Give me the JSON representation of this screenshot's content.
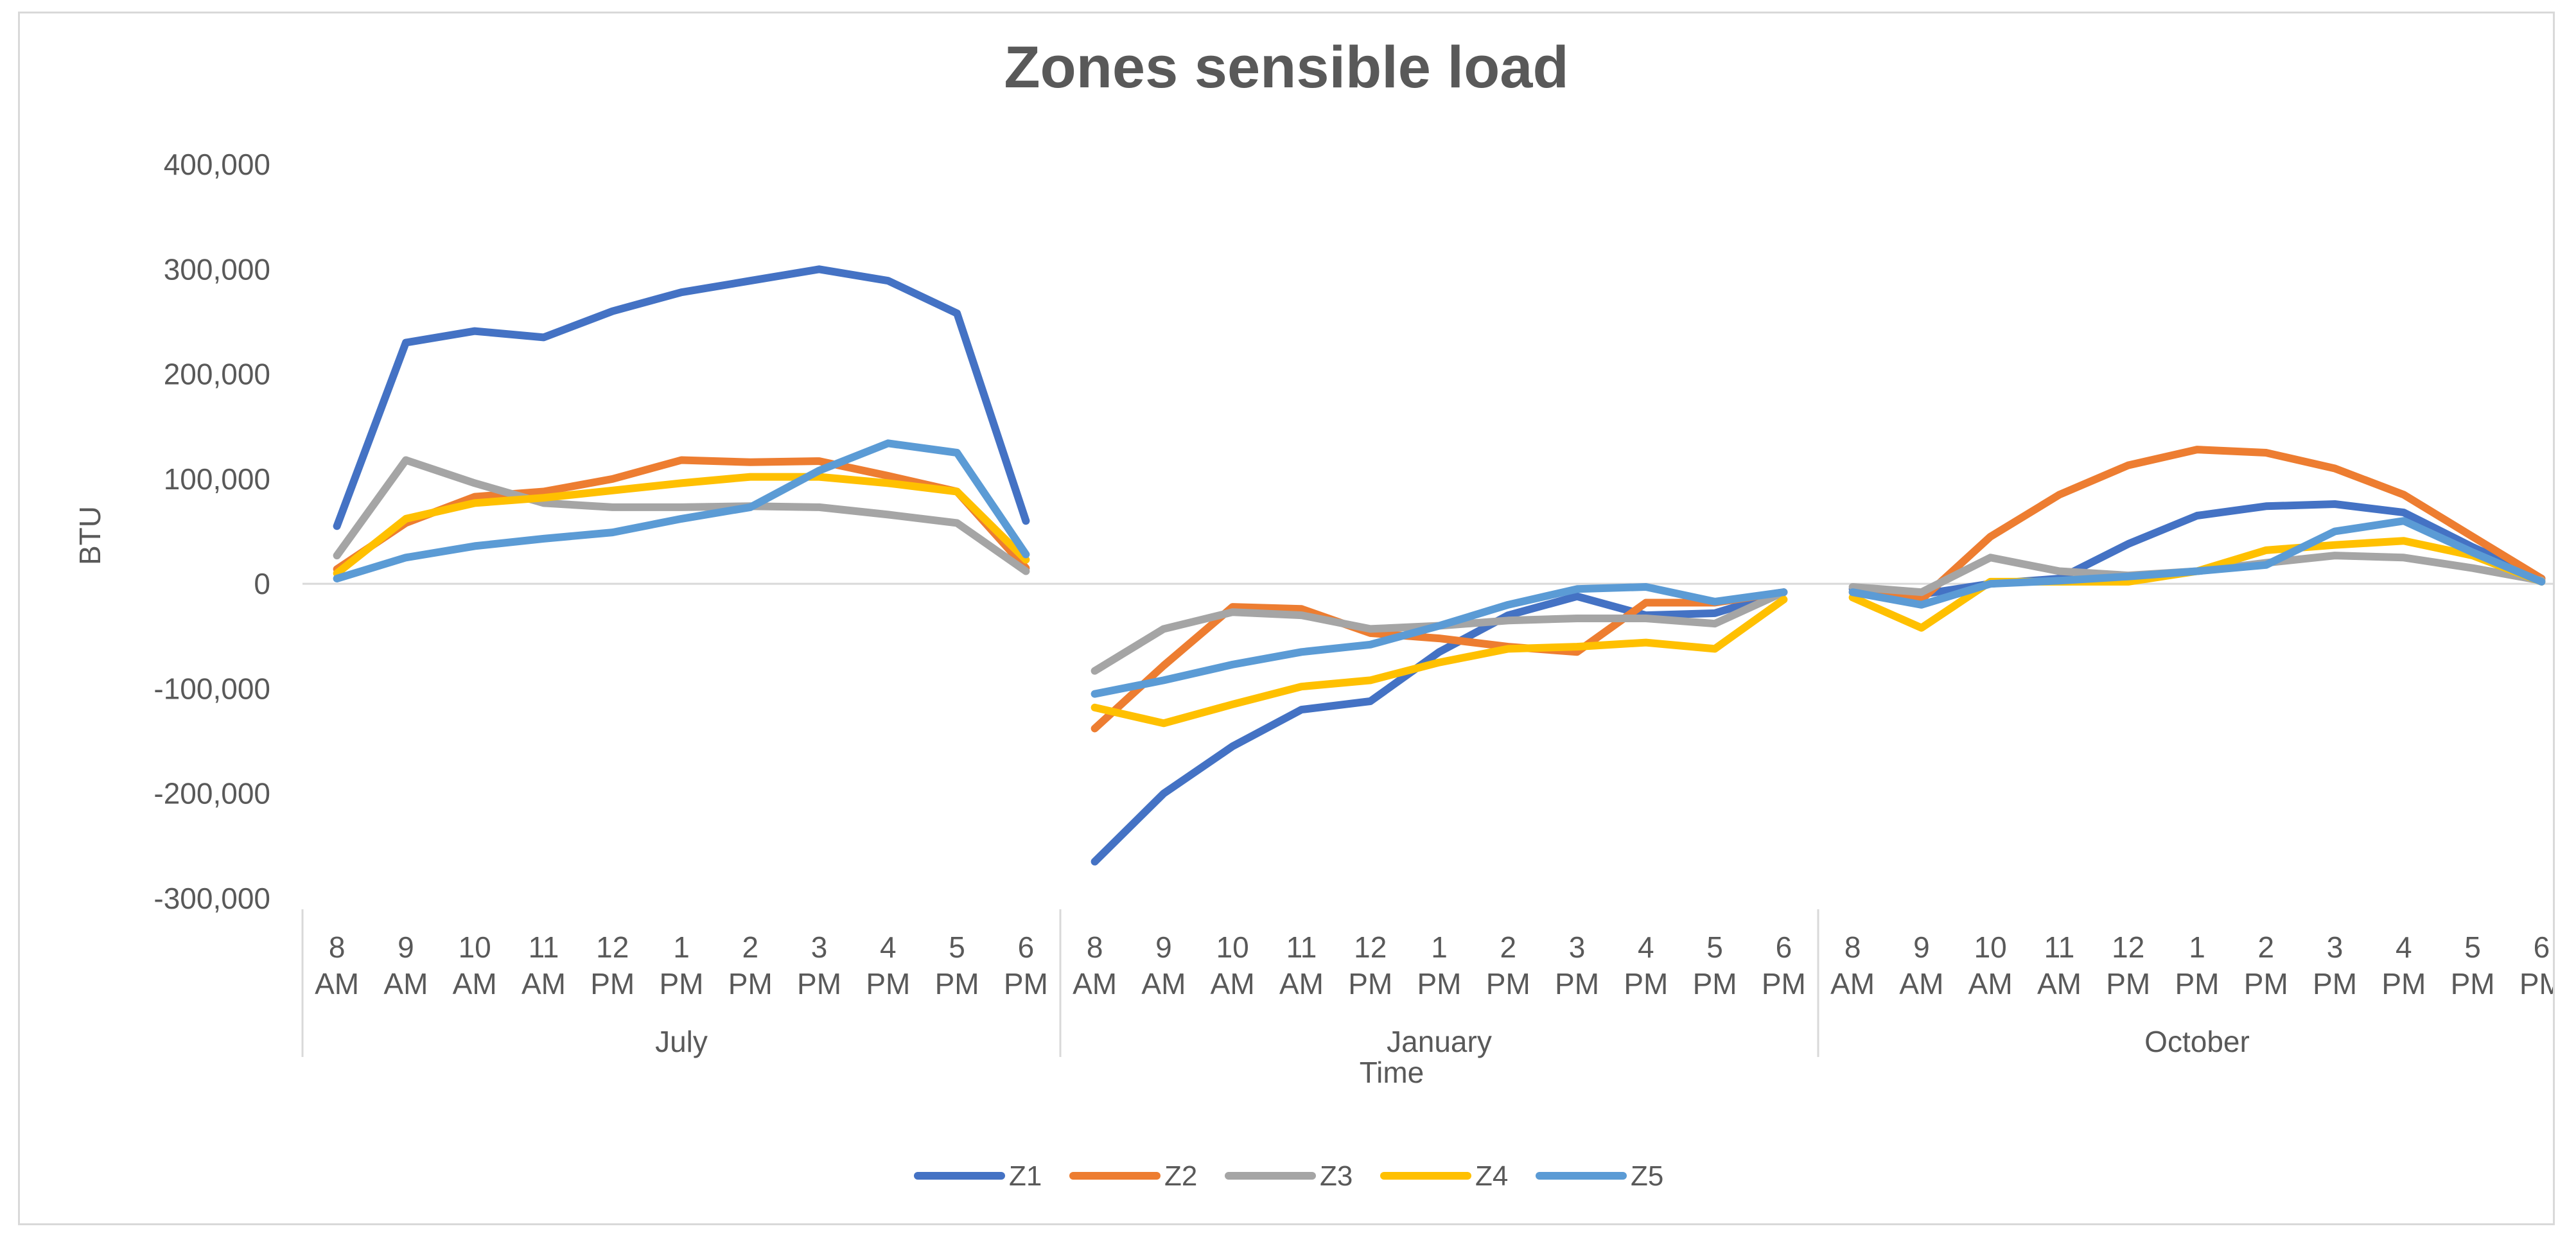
{
  "chart_data": {
    "type": "line",
    "title": "Zones sensible load",
    "xlabel": "Time",
    "ylabel": "BTU",
    "ylim": [
      -300000,
      400000
    ],
    "yticks": [
      400000,
      300000,
      200000,
      100000,
      0,
      -100000,
      -200000,
      -300000
    ],
    "ytick_labels": [
      "400,000",
      "300,000",
      "200,000",
      "100,000",
      "0",
      "-100,000",
      "-200,000",
      "-300,000"
    ],
    "gridlines": false,
    "legend_position": "bottom",
    "hours": [
      [
        "8",
        "AM"
      ],
      [
        "9",
        "AM"
      ],
      [
        "10",
        "AM"
      ],
      [
        "11",
        "AM"
      ],
      [
        "12",
        "PM"
      ],
      [
        "1",
        "PM"
      ],
      [
        "2",
        "PM"
      ],
      [
        "3",
        "PM"
      ],
      [
        "4",
        "PM"
      ],
      [
        "5",
        "PM"
      ],
      [
        "6",
        "PM"
      ]
    ],
    "groups": [
      "July",
      "January",
      "October"
    ],
    "series": [
      {
        "name": "Z1",
        "color": "#4472C4",
        "values": [
          [
            55000,
            230000,
            241000,
            235000,
            260000,
            278000,
            289000,
            300000,
            289000,
            258000,
            60000
          ],
          [
            -265000,
            -200000,
            -155000,
            -120000,
            -112000,
            -65000,
            -30000,
            -12000,
            -30000,
            -28000,
            -8000
          ],
          [
            -5000,
            -10000,
            0,
            5000,
            38000,
            65000,
            74000,
            76000,
            68000,
            35000,
            5000
          ]
        ]
      },
      {
        "name": "Z2",
        "color": "#ED7D31",
        "values": [
          [
            14000,
            58000,
            83000,
            88000,
            100000,
            118000,
            116000,
            117000,
            103000,
            88000,
            15000
          ],
          [
            -138000,
            -78000,
            -22000,
            -24000,
            -47000,
            -52000,
            -60000,
            -65000,
            -18000,
            -18000,
            -8000
          ],
          [
            -8000,
            -15000,
            45000,
            85000,
            113000,
            128000,
            125000,
            110000,
            85000,
            45000,
            5000
          ]
        ]
      },
      {
        "name": "Z3",
        "color": "#A5A5A5",
        "values": [
          [
            27000,
            118000,
            96000,
            77000,
            73000,
            73000,
            74000,
            73000,
            66000,
            58000,
            12000
          ],
          [
            -83000,
            -43000,
            -27000,
            -30000,
            -43000,
            -40000,
            -35000,
            -33000,
            -33000,
            -38000,
            -8000
          ],
          [
            -3000,
            -8000,
            25000,
            12000,
            8000,
            12000,
            20000,
            27000,
            25000,
            15000,
            3000
          ]
        ]
      },
      {
        "name": "Z4",
        "color": "#FFC000",
        "values": [
          [
            10000,
            62000,
            77000,
            82000,
            89000,
            96000,
            102000,
            102000,
            96000,
            88000,
            23000
          ],
          [
            -118000,
            -133000,
            -115000,
            -98000,
            -92000,
            -75000,
            -62000,
            -60000,
            -56000,
            -62000,
            -15000
          ],
          [
            -13000,
            -42000,
            2000,
            2000,
            2000,
            12000,
            32000,
            37000,
            41000,
            27000,
            2000
          ]
        ]
      },
      {
        "name": "Z5",
        "color": "#5B9BD5",
        "values": [
          [
            5000,
            25000,
            36000,
            43000,
            49000,
            62000,
            73000,
            108000,
            134000,
            125000,
            28000
          ],
          [
            -105000,
            -92000,
            -77000,
            -65000,
            -58000,
            -40000,
            -20000,
            -5000,
            -3000,
            -17000,
            -8000
          ],
          [
            -8000,
            -20000,
            0,
            3000,
            7000,
            12000,
            18000,
            50000,
            60000,
            30000,
            2000
          ]
        ]
      }
    ]
  }
}
